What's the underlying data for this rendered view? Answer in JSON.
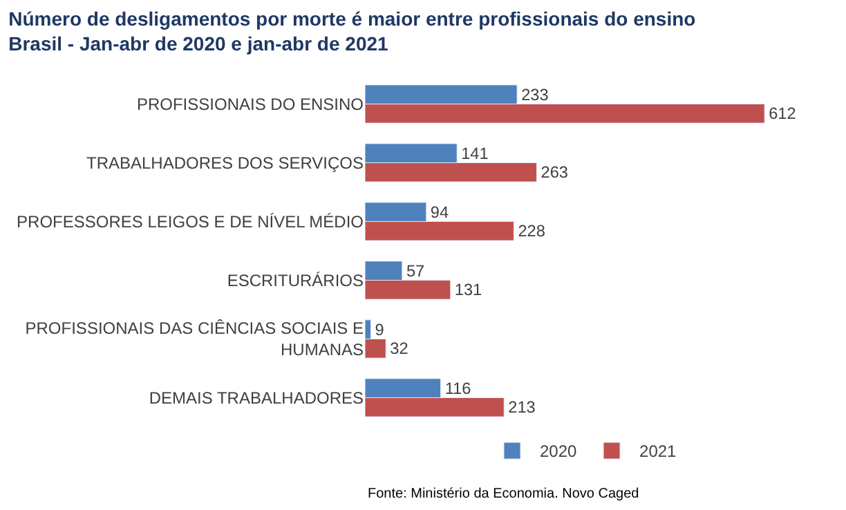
{
  "chart_data": {
    "type": "bar",
    "orientation": "horizontal",
    "title": "Número de desligamentos por morte é maior entre profissionais do ensino",
    "subtitle": "Brasil - Jan-abr de 2020 e jan-abr de 2021",
    "categories": [
      "PROFISSIONAIS DO ENSINO",
      "TRABALHADORES DOS SERVIÇOS",
      "PROFESSORES LEIGOS E DE NÍVEL MÉDIO",
      "ESCRITURÁRIOS",
      "PROFISSIONAIS DAS CIÊNCIAS SOCIAIS E HUMANAS",
      "DEMAIS TRABALHADORES"
    ],
    "series": [
      {
        "name": "2020",
        "color": "#4f81bd",
        "values": [
          233,
          141,
          94,
          57,
          9,
          116
        ]
      },
      {
        "name": "2021",
        "color": "#c0504d",
        "values": [
          612,
          263,
          228,
          131,
          32,
          213
        ]
      }
    ],
    "data_labels": true,
    "legend": "bottom",
    "tick_labels": "y",
    "annotations": [
      "Fonte: Ministério da Economia. Novo Caged"
    ]
  }
}
